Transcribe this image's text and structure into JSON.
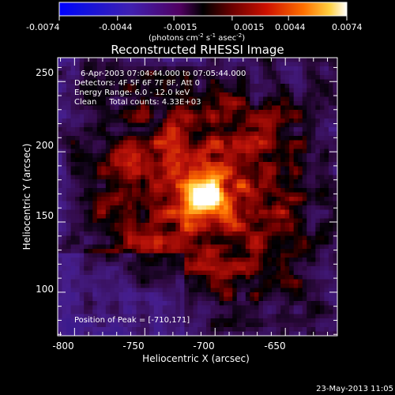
{
  "colorbar": {
    "tick_labels": [
      "-0.0074",
      "-0.0044",
      "-0.0015",
      "0.0015",
      "0.0044",
      "0.0074"
    ],
    "units_text": "(photons cm",
    "units_exp1": "-2",
    "units_mid": " s",
    "units_exp2": "-1",
    "units_tail": " asec",
    "units_exp3": "-2",
    "units_close": ")",
    "range": [
      -0.0074,
      0.0074
    ]
  },
  "title": "Reconstructed RHESSI Image",
  "annotations": {
    "time_range": "6-Apr-2003 07:04:44.000 to 07:05:44.000",
    "detectors": "Detectors: 4F 5F 6F 7F 8F, Att 0",
    "energy": "Energy Range: 6.0 - 12.0 keV",
    "clean": "Clean     Total counts: 4.33E+03",
    "peak": "Position of Peak = [-710,171]"
  },
  "axes": {
    "xlabel": "Heliocentric X (arcsec)",
    "ylabel": "Heliocentric Y (arcsec)",
    "xticks": [
      "-800",
      "-750",
      "-700",
      "-650"
    ],
    "yticks": [
      "250",
      "200",
      "150",
      "100"
    ],
    "xlim": [
      -812,
      -613
    ],
    "ylim": [
      69,
      267
    ]
  },
  "image_stats": {
    "peak_position": [
      -710,
      171
    ],
    "total_counts": 4330
  },
  "footer": {
    "timestamp": "23-May-2013 11:05"
  }
}
